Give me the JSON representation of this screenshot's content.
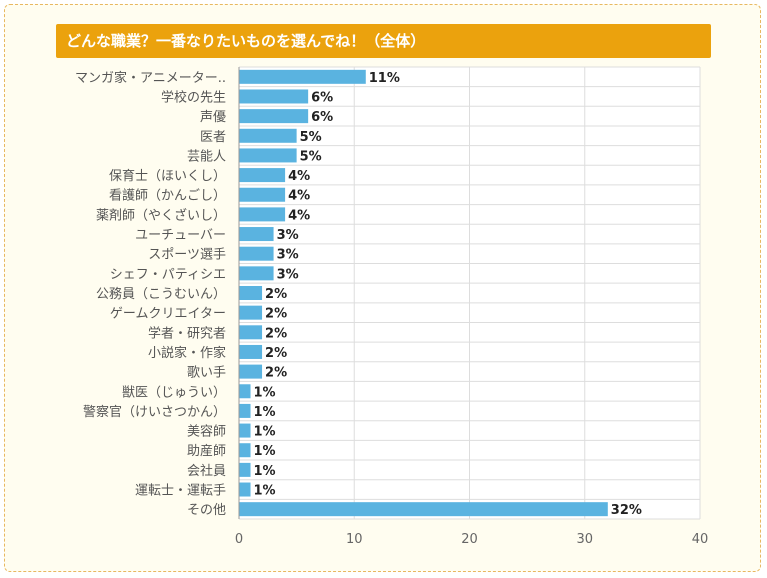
{
  "chart_data": {
    "type": "bar",
    "orientation": "horizontal",
    "title": "どんな職業？一番なりたいものを選んでね！（全体）",
    "categories": [
      "マンガ家・アニメーター..",
      "学校の先生",
      "声優",
      "医者",
      "芸能人",
      "保育士（ほいくし）",
      "看護師（かんごし）",
      "薬剤師（やくざいし）",
      "ユーチューバー",
      "スポーツ選手",
      "シェフ・パティシエ",
      "公務員（こうむいん）",
      "ゲームクリエイター",
      "学者・研究者",
      "小説家・作家",
      "歌い手",
      "獣医（じゅうい）",
      "警察官（けいさつかん）",
      "美容師",
      "助産師",
      "会社員",
      "運転士・運転手",
      "その他"
    ],
    "values": [
      11,
      6,
      6,
      5,
      5,
      4,
      4,
      4,
      3,
      3,
      3,
      2,
      2,
      2,
      2,
      2,
      1,
      1,
      1,
      1,
      1,
      1,
      32
    ],
    "value_labels": [
      "11%",
      "6%",
      "6%",
      "5%",
      "5%",
      "4%",
      "4%",
      "4%",
      "3%",
      "3%",
      "3%",
      "2%",
      "2%",
      "2%",
      "2%",
      "2%",
      "1%",
      "1%",
      "1%",
      "1%",
      "1%",
      "1%",
      "32%"
    ],
    "xlim": [
      0,
      40
    ],
    "xticks": [
      "0",
      "10",
      "20",
      "30",
      "40"
    ],
    "grid": true,
    "legend": "none",
    "colors": {
      "bar": "#5ab3e0",
      "title_bg": "#eba20d",
      "grid": "#dddddd",
      "frame_border": "#e8b860",
      "background": "#fffdf0"
    }
  }
}
